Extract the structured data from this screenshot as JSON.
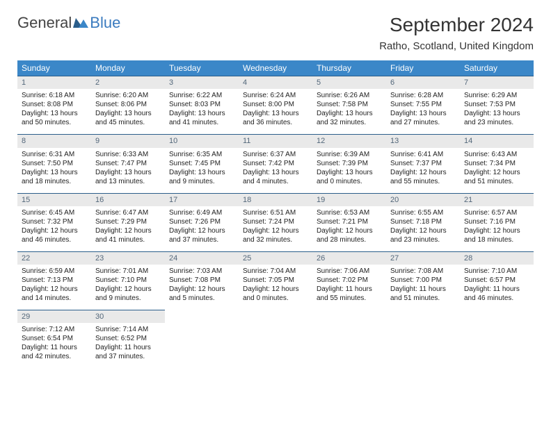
{
  "brand": {
    "word1": "General",
    "word2": "Blue"
  },
  "title": "September 2024",
  "location": "Ratho, Scotland, United Kingdom",
  "colors": {
    "header_bg": "#3b87c8",
    "header_text": "#ffffff",
    "daynum_bg": "#e9e9e9",
    "daynum_border": "#2a5d8a",
    "daynum_text": "#53677a",
    "logo_blue": "#3b7bbf"
  },
  "weekdays": [
    "Sunday",
    "Monday",
    "Tuesday",
    "Wednesday",
    "Thursday",
    "Friday",
    "Saturday"
  ],
  "weeks": [
    [
      {
        "n": "1",
        "sr": "6:18 AM",
        "ss": "8:08 PM",
        "dl": "13 hours and 50 minutes."
      },
      {
        "n": "2",
        "sr": "6:20 AM",
        "ss": "8:06 PM",
        "dl": "13 hours and 45 minutes."
      },
      {
        "n": "3",
        "sr": "6:22 AM",
        "ss": "8:03 PM",
        "dl": "13 hours and 41 minutes."
      },
      {
        "n": "4",
        "sr": "6:24 AM",
        "ss": "8:00 PM",
        "dl": "13 hours and 36 minutes."
      },
      {
        "n": "5",
        "sr": "6:26 AM",
        "ss": "7:58 PM",
        "dl": "13 hours and 32 minutes."
      },
      {
        "n": "6",
        "sr": "6:28 AM",
        "ss": "7:55 PM",
        "dl": "13 hours and 27 minutes."
      },
      {
        "n": "7",
        "sr": "6:29 AM",
        "ss": "7:53 PM",
        "dl": "13 hours and 23 minutes."
      }
    ],
    [
      {
        "n": "8",
        "sr": "6:31 AM",
        "ss": "7:50 PM",
        "dl": "13 hours and 18 minutes."
      },
      {
        "n": "9",
        "sr": "6:33 AM",
        "ss": "7:47 PM",
        "dl": "13 hours and 13 minutes."
      },
      {
        "n": "10",
        "sr": "6:35 AM",
        "ss": "7:45 PM",
        "dl": "13 hours and 9 minutes."
      },
      {
        "n": "11",
        "sr": "6:37 AM",
        "ss": "7:42 PM",
        "dl": "13 hours and 4 minutes."
      },
      {
        "n": "12",
        "sr": "6:39 AM",
        "ss": "7:39 PM",
        "dl": "13 hours and 0 minutes."
      },
      {
        "n": "13",
        "sr": "6:41 AM",
        "ss": "7:37 PM",
        "dl": "12 hours and 55 minutes."
      },
      {
        "n": "14",
        "sr": "6:43 AM",
        "ss": "7:34 PM",
        "dl": "12 hours and 51 minutes."
      }
    ],
    [
      {
        "n": "15",
        "sr": "6:45 AM",
        "ss": "7:32 PM",
        "dl": "12 hours and 46 minutes."
      },
      {
        "n": "16",
        "sr": "6:47 AM",
        "ss": "7:29 PM",
        "dl": "12 hours and 41 minutes."
      },
      {
        "n": "17",
        "sr": "6:49 AM",
        "ss": "7:26 PM",
        "dl": "12 hours and 37 minutes."
      },
      {
        "n": "18",
        "sr": "6:51 AM",
        "ss": "7:24 PM",
        "dl": "12 hours and 32 minutes."
      },
      {
        "n": "19",
        "sr": "6:53 AM",
        "ss": "7:21 PM",
        "dl": "12 hours and 28 minutes."
      },
      {
        "n": "20",
        "sr": "6:55 AM",
        "ss": "7:18 PM",
        "dl": "12 hours and 23 minutes."
      },
      {
        "n": "21",
        "sr": "6:57 AM",
        "ss": "7:16 PM",
        "dl": "12 hours and 18 minutes."
      }
    ],
    [
      {
        "n": "22",
        "sr": "6:59 AM",
        "ss": "7:13 PM",
        "dl": "12 hours and 14 minutes."
      },
      {
        "n": "23",
        "sr": "7:01 AM",
        "ss": "7:10 PM",
        "dl": "12 hours and 9 minutes."
      },
      {
        "n": "24",
        "sr": "7:03 AM",
        "ss": "7:08 PM",
        "dl": "12 hours and 5 minutes."
      },
      {
        "n": "25",
        "sr": "7:04 AM",
        "ss": "7:05 PM",
        "dl": "12 hours and 0 minutes."
      },
      {
        "n": "26",
        "sr": "7:06 AM",
        "ss": "7:02 PM",
        "dl": "11 hours and 55 minutes."
      },
      {
        "n": "27",
        "sr": "7:08 AM",
        "ss": "7:00 PM",
        "dl": "11 hours and 51 minutes."
      },
      {
        "n": "28",
        "sr": "7:10 AM",
        "ss": "6:57 PM",
        "dl": "11 hours and 46 minutes."
      }
    ],
    [
      {
        "n": "29",
        "sr": "7:12 AM",
        "ss": "6:54 PM",
        "dl": "11 hours and 42 minutes."
      },
      {
        "n": "30",
        "sr": "7:14 AM",
        "ss": "6:52 PM",
        "dl": "11 hours and 37 minutes."
      },
      null,
      null,
      null,
      null,
      null
    ]
  ],
  "labels": {
    "sunrise": "Sunrise:",
    "sunset": "Sunset:",
    "daylight": "Daylight:"
  }
}
